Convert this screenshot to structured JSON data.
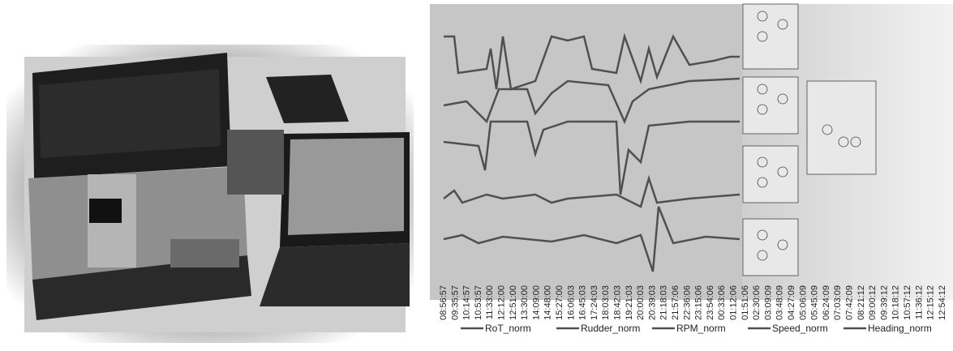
{
  "chart": {
    "times": [
      "08:56:57",
      "09:35:57",
      "10:14:57",
      "10:53:57",
      "11:33:00",
      "12:12:00",
      "12:51:00",
      "13:30:00",
      "14:09:00",
      "14:48:00",
      "15:27:00",
      "16:06:03",
      "16:45:03",
      "17:24:03",
      "18:03:03",
      "18:42:03",
      "19:21:03",
      "20:00:03",
      "20:39:03",
      "21:18:03",
      "21:57:06",
      "22:36:06",
      "23:15:06",
      "23:54:06",
      "00:33:06",
      "01:12:06",
      "01:51:06",
      "02:30:06",
      "03:09:09",
      "03:48:09",
      "04:27:09",
      "05:06:09",
      "05:45:09",
      "06:24:09",
      "07:03:09",
      "07:42:09",
      "08:21:12",
      "09:00:12",
      "09:39:12",
      "10:18:12",
      "10:57:12",
      "11:36:12",
      "12:15:12",
      "12:54:12"
    ],
    "legend": [
      "RoT_norm",
      "Rudder_norm",
      "RPM_norm",
      "Speed_norm",
      "Heading_norm"
    ]
  }
}
